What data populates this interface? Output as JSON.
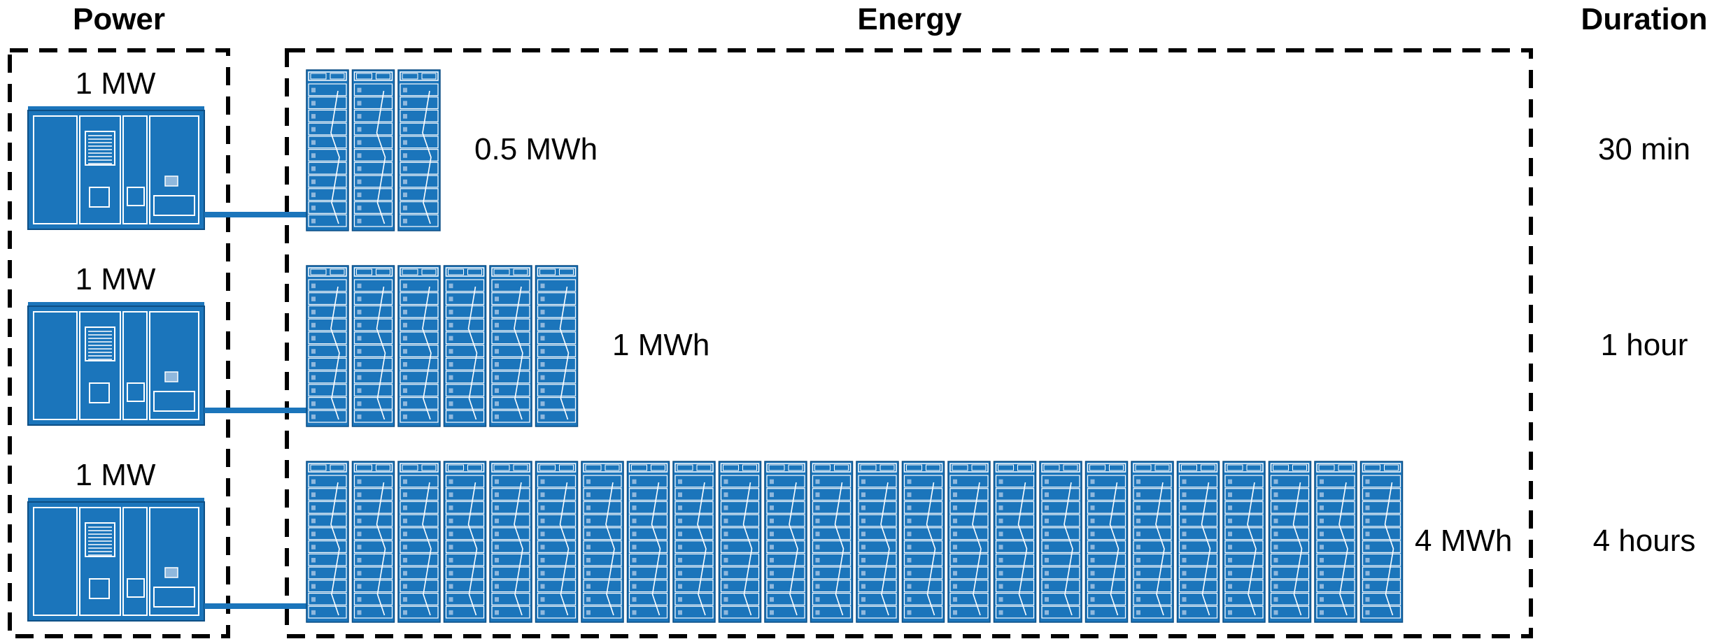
{
  "headers": {
    "power": "Power",
    "energy": "Energy",
    "duration": "Duration"
  },
  "colors": {
    "equipment_fill": "#1b75bb",
    "equipment_line": "#ffffff",
    "connector": "#1b75bb",
    "frame": "#000000"
  },
  "rows": [
    {
      "power": "1 MW",
      "energy": "0.5 MWh",
      "duration": "30 min",
      "battery_racks": 3
    },
    {
      "power": "1 MW",
      "energy": "1 MWh",
      "duration": "1 hour",
      "battery_racks": 6
    },
    {
      "power": "1 MW",
      "energy": "4 MWh",
      "duration": "4 hours",
      "battery_racks": 24
    }
  ]
}
